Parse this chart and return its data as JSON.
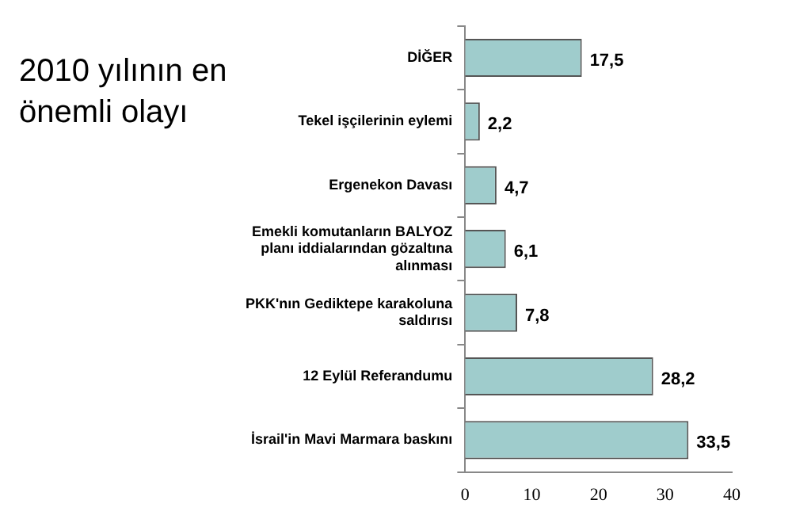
{
  "chart_data": {
    "type": "bar",
    "orientation": "horizontal",
    "title": "2010 yılının en önemli olayı",
    "categories": [
      "DİĞER",
      "Tekel işçilerinin eylemi",
      "Ergenekon Davası",
      "Emekli komutanların BALYOZ planı iddialarından gözaltına alınması",
      "PKK'nın Gediktepe karakoluna saldırısı",
      "12 Eylül Referandumu",
      "İsrail'in Mavi Marmara baskını"
    ],
    "values": [
      17.5,
      2.2,
      4.7,
      6.1,
      7.8,
      28.2,
      33.5
    ],
    "color": "#9fcccc",
    "xlim": [
      0,
      40
    ],
    "xticks": [
      0,
      10,
      20,
      30,
      40
    ],
    "grid": false,
    "value_labels": [
      "17,5",
      "2,2",
      "4,7",
      "6,1",
      "7,8",
      "28,2",
      "33,5"
    ],
    "legend": false
  }
}
